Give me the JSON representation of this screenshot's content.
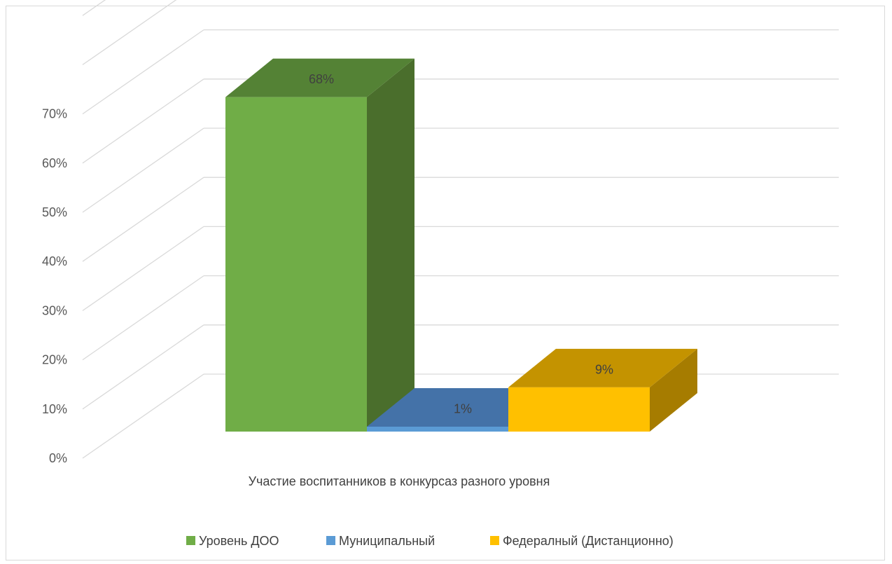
{
  "chart_data": {
    "type": "bar",
    "three_d": true,
    "categories": [
      "Участие воспитанников в конкурсаз разного уровня"
    ],
    "series": [
      {
        "name": "Уровень ДОО",
        "values": [
          68
        ],
        "label": "68%",
        "color": "#70ad47",
        "side_color": "#4a6e2c",
        "top_color": "#548235"
      },
      {
        "name": "Муниципальный",
        "values": [
          1
        ],
        "label": "1%",
        "color": "#5b9bd5",
        "side_color": "#3b6fa0",
        "top_color": "#4472a8"
      },
      {
        "name": "Федералный (Дистанционно)",
        "values": [
          9
        ],
        "label": "9%",
        "color": "#ffc000",
        "side_color": "#a67c00",
        "top_color": "#c49300"
      }
    ],
    "y_ticks": [
      "0%",
      "10%",
      "20%",
      "30%",
      "40%",
      "50%",
      "60%",
      "70%"
    ],
    "ylim": [
      0,
      80
    ],
    "grid": true,
    "legend_position": "bottom"
  }
}
